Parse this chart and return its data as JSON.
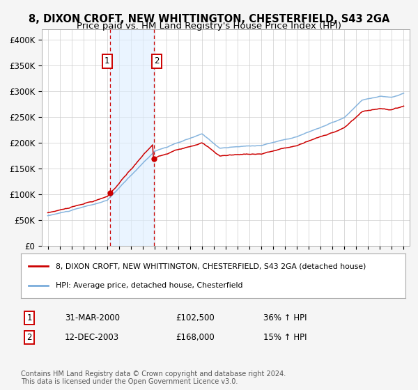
{
  "title": "8, DIXON CROFT, NEW WHITTINGTON, CHESTERFIELD, S43 2GA",
  "subtitle": "Price paid vs. HM Land Registry's House Price Index (HPI)",
  "title_fontsize": 10.5,
  "subtitle_fontsize": 9.5,
  "background_color": "#f5f5f5",
  "grid_color": "#cccccc",
  "plot_bg_color": "#ffffff",
  "hpi_line_color": "#7aaddb",
  "price_line_color": "#cc0000",
  "sale_dot_color": "#cc0000",
  "shade_color": "#ddeeff",
  "vline_color": "#cc0000",
  "ylim": [
    0,
    420000
  ],
  "yticks": [
    0,
    50000,
    100000,
    150000,
    200000,
    250000,
    300000,
    350000,
    400000
  ],
  "ytick_labels": [
    "£0",
    "£50K",
    "£100K",
    "£150K",
    "£200K",
    "£250K",
    "£300K",
    "£350K",
    "£400K"
  ],
  "sale1_label": "1",
  "sale1_date": "31-MAR-2000",
  "sale1_price": "£102,500",
  "sale1_hpi": "36% ↑ HPI",
  "sale1_x": 2000.25,
  "sale1_y": 102500,
  "sale2_label": "2",
  "sale2_date": "12-DEC-2003",
  "sale2_price": "£168,000",
  "sale2_hpi": "15% ↑ HPI",
  "sale2_x": 2003.95,
  "sale2_y": 168000,
  "legend_line1": "8, DIXON CROFT, NEW WHITTINGTON, CHESTERFIELD, S43 2GA (detached house)",
  "legend_line2": "HPI: Average price, detached house, Chesterfield",
  "footnote": "Contains HM Land Registry data © Crown copyright and database right 2024.\nThis data is licensed under the Open Government Licence v3.0.",
  "xtick_years": [
    1995,
    1996,
    1997,
    1998,
    1999,
    2000,
    2001,
    2002,
    2003,
    2004,
    2005,
    2006,
    2007,
    2008,
    2009,
    2010,
    2011,
    2012,
    2013,
    2014,
    2015,
    2016,
    2017,
    2018,
    2019,
    2020,
    2021,
    2022,
    2023,
    2024,
    2025
  ],
  "xlim_left": 1994.5,
  "xlim_right": 2025.5
}
